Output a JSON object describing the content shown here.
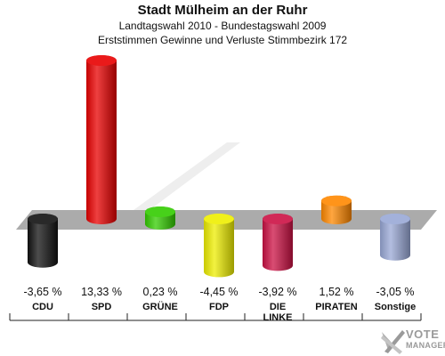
{
  "header": {
    "title": "Stadt Mülheim an der Ruhr",
    "subtitle": "Landtagswahl 2010 - Bundestagswahl 2009",
    "subtitle2": "Erststimmen Gewinne und Verluste Stimmbezirk 172"
  },
  "logo": {
    "line1": "VOTE",
    "line2": "MANAGER"
  },
  "chart_data": {
    "type": "bar",
    "title": "Stadt Mülheim an der Ruhr",
    "subtitle": "Landtagswahl 2010 - Bundestagswahl 2009 / Erststimmen Gewinne und Verluste Stimmbezirk 172",
    "categories": [
      "CDU",
      "SPD",
      "GRÜNE",
      "FDP",
      "DIE LINKE",
      "PIRATEN",
      "Sonstige"
    ],
    "category_lines": [
      [
        "CDU"
      ],
      [
        "SPD"
      ],
      [
        "GRÜNE"
      ],
      [
        "FDP"
      ],
      [
        "DIE",
        "LINKE"
      ],
      [
        "PIRATEN"
      ],
      [
        "Sonstige"
      ]
    ],
    "values": [
      -3.65,
      13.33,
      0.23,
      -4.45,
      -3.92,
      1.52,
      -3.05
    ],
    "value_labels": [
      "-3,65 %",
      "13,33 %",
      "0,23 %",
      "-4,45 %",
      "-3,92 %",
      "1,52 %",
      "-3,05 %"
    ],
    "colors": [
      "#111111",
      "#e80000",
      "#33cc00",
      "#eeee00",
      "#cc1144",
      "#ff8800",
      "#99a8d6"
    ],
    "xlabel": "",
    "ylabel": "",
    "grid": false,
    "legend": "none"
  }
}
